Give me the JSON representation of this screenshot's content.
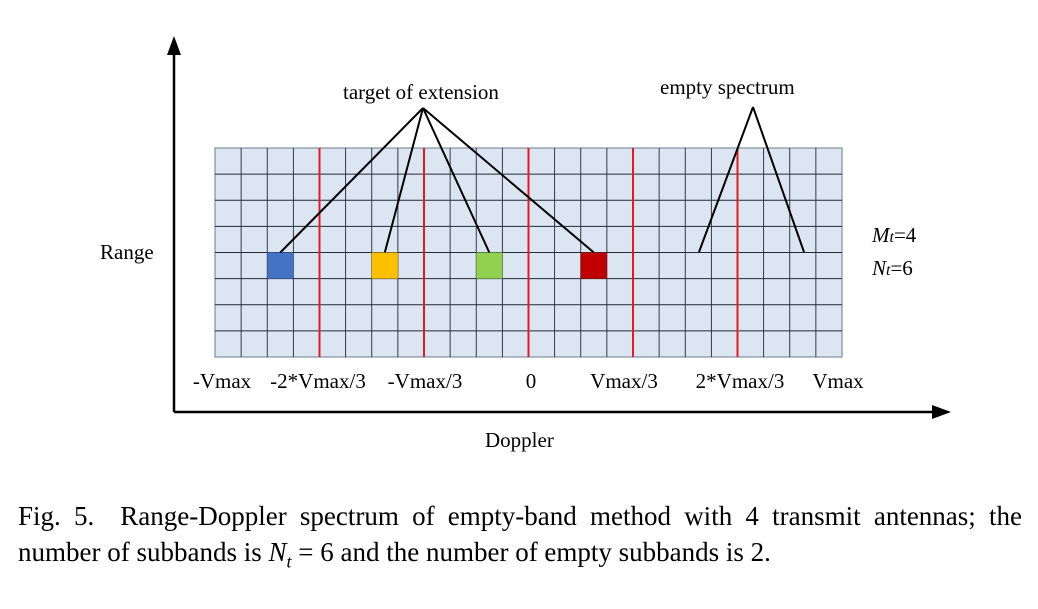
{
  "figure": {
    "y_axis_label": "Range",
    "x_axis_label": "Doppler",
    "annotation_targets": "target of extension",
    "annotation_empty": "empty spectrum",
    "param_m": {
      "symbol": "M",
      "sub": "t",
      "value": "=4"
    },
    "param_n": {
      "symbol": "N",
      "sub": "t",
      "value": "=6"
    },
    "doppler_ticks": [
      "-Vmax",
      "-2*Vmax/3",
      "-Vmax/3",
      "0",
      "Vmax/3",
      "2*Vmax/3",
      "Vmax"
    ],
    "grid": {
      "columns": 24,
      "rows": 8,
      "subbands": 6,
      "columns_per_subband": 4,
      "fill": "#dce6f2",
      "line_color": "#1f2a36",
      "divider_color": "#e8191e"
    },
    "targets": [
      {
        "name": "blue",
        "column": 2,
        "row": 4,
        "color": "#4472c4"
      },
      {
        "name": "yellow",
        "column": 6,
        "row": 4,
        "color": "#ffc000"
      },
      {
        "name": "green",
        "column": 10,
        "row": 4,
        "color": "#92d050"
      },
      {
        "name": "red",
        "column": 14,
        "row": 4,
        "color": "#c00000"
      }
    ]
  },
  "caption": {
    "label": "Fig. 5.",
    "text_1": "Range-Doppler spectrum of empty-band method with 4 transmit antennas; the number of subbands is ",
    "math_symbol": "N",
    "math_sub": "t",
    "math_rest": " = 6",
    "text_2": " and the number of empty subbands is 2."
  }
}
